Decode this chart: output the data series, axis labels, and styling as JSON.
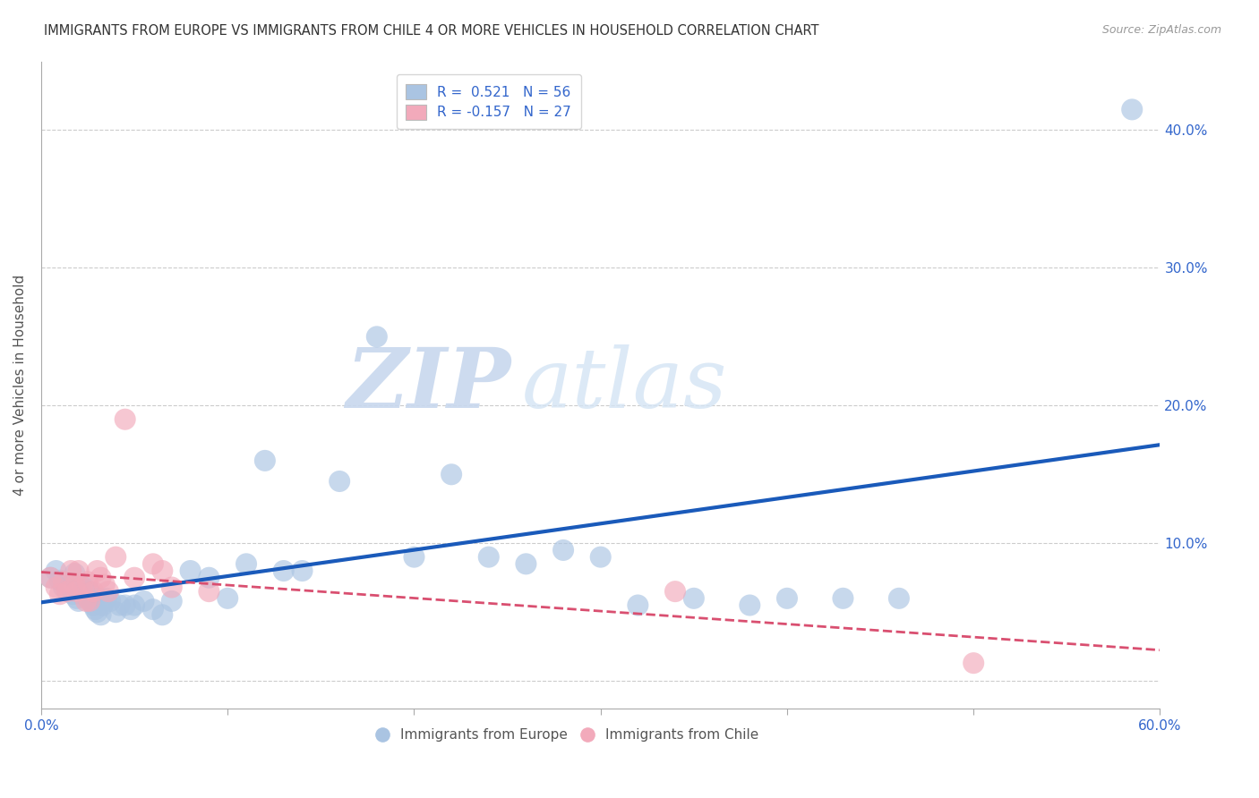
{
  "title": "IMMIGRANTS FROM EUROPE VS IMMIGRANTS FROM CHILE 4 OR MORE VEHICLES IN HOUSEHOLD CORRELATION CHART",
  "source": "Source: ZipAtlas.com",
  "ylabel": "4 or more Vehicles in Household",
  "xlim": [
    0.0,
    0.6
  ],
  "ylim": [
    -0.02,
    0.45
  ],
  "xticks": [
    0.0,
    0.1,
    0.2,
    0.3,
    0.4,
    0.5,
    0.6
  ],
  "yticks": [
    0.0,
    0.1,
    0.2,
    0.3,
    0.4
  ],
  "xtick_labels_show": [
    "0.0%",
    "",
    "",
    "",
    "",
    "",
    "60.0%"
  ],
  "ytick_labels_right": [
    "",
    "10.0%",
    "20.0%",
    "30.0%",
    "40.0%"
  ],
  "legend1_R": "0.521",
  "legend1_N": "56",
  "legend2_R": "-0.157",
  "legend2_N": "27",
  "blue_color": "#aac4e2",
  "pink_color": "#f2aabb",
  "blue_line_color": "#1a5aba",
  "pink_line_color": "#d94f70",
  "watermark_zip": "ZIP",
  "watermark_atlas": "atlas",
  "blue_points_x": [
    0.005,
    0.008,
    0.01,
    0.012,
    0.013,
    0.015,
    0.016,
    0.017,
    0.018,
    0.019,
    0.02,
    0.021,
    0.022,
    0.023,
    0.025,
    0.026,
    0.027,
    0.028,
    0.029,
    0.03,
    0.031,
    0.032,
    0.033,
    0.035,
    0.037,
    0.04,
    0.042,
    0.045,
    0.048,
    0.05,
    0.055,
    0.06,
    0.065,
    0.07,
    0.08,
    0.09,
    0.1,
    0.11,
    0.12,
    0.13,
    0.14,
    0.16,
    0.18,
    0.2,
    0.22,
    0.24,
    0.26,
    0.28,
    0.3,
    0.32,
    0.35,
    0.38,
    0.4,
    0.43,
    0.46,
    0.585
  ],
  "blue_points_y": [
    0.075,
    0.08,
    0.073,
    0.068,
    0.072,
    0.065,
    0.07,
    0.063,
    0.078,
    0.06,
    0.058,
    0.07,
    0.063,
    0.068,
    0.06,
    0.065,
    0.058,
    0.055,
    0.052,
    0.05,
    0.06,
    0.048,
    0.055,
    0.06,
    0.058,
    0.05,
    0.055,
    0.055,
    0.052,
    0.055,
    0.058,
    0.052,
    0.048,
    0.058,
    0.08,
    0.075,
    0.06,
    0.085,
    0.16,
    0.08,
    0.08,
    0.145,
    0.25,
    0.09,
    0.15,
    0.09,
    0.085,
    0.095,
    0.09,
    0.055,
    0.06,
    0.055,
    0.06,
    0.06,
    0.06,
    0.415
  ],
  "pink_points_x": [
    0.005,
    0.008,
    0.01,
    0.012,
    0.014,
    0.016,
    0.018,
    0.019,
    0.02,
    0.022,
    0.024,
    0.025,
    0.026,
    0.028,
    0.03,
    0.032,
    0.034,
    0.036,
    0.04,
    0.045,
    0.05,
    0.06,
    0.065,
    0.07,
    0.09,
    0.34,
    0.5
  ],
  "pink_points_y": [
    0.075,
    0.068,
    0.063,
    0.072,
    0.065,
    0.08,
    0.07,
    0.065,
    0.08,
    0.068,
    0.058,
    0.072,
    0.058,
    0.065,
    0.08,
    0.075,
    0.07,
    0.065,
    0.09,
    0.19,
    0.075,
    0.085,
    0.08,
    0.068,
    0.065,
    0.065,
    0.013
  ]
}
